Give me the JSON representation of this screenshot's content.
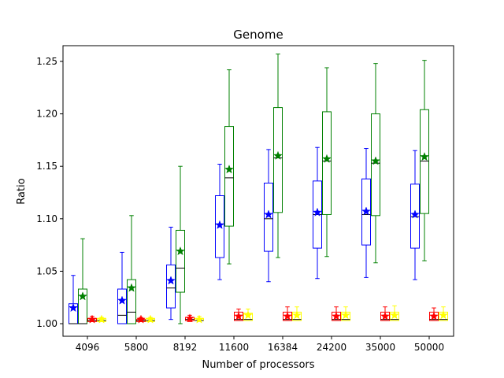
{
  "chart_data": {
    "type": "box",
    "title": "Genome",
    "xlabel": "Number of processors",
    "ylabel": "Ratio",
    "categories": [
      "4096",
      "5800",
      "8192",
      "11600",
      "16384",
      "24200",
      "35000",
      "50000"
    ],
    "ylim": [
      0.988,
      1.265
    ],
    "yticks": [
      1.0,
      1.05,
      1.1,
      1.15,
      1.2,
      1.25
    ],
    "ytick_labels": [
      "1.00",
      "1.05",
      "1.10",
      "1.15",
      "1.20",
      "1.25"
    ],
    "grid": false,
    "legend": "none",
    "series": [
      {
        "color": "#0000ff",
        "boxes": [
          {
            "min": 1.0,
            "q1": 1.0,
            "median": 1.0,
            "q3": 1.019,
            "max": 1.046,
            "mean": 1.015
          },
          {
            "min": 1.0,
            "q1": 1.0,
            "median": 1.008,
            "q3": 1.033,
            "max": 1.068,
            "mean": 1.022
          },
          {
            "min": 1.004,
            "q1": 1.015,
            "median": 1.034,
            "q3": 1.056,
            "max": 1.092,
            "mean": 1.041
          },
          {
            "min": 1.042,
            "q1": 1.063,
            "median": 1.095,
            "q3": 1.122,
            "max": 1.152,
            "mean": 1.094
          },
          {
            "min": 1.04,
            "q1": 1.069,
            "median": 1.1,
            "q3": 1.134,
            "max": 1.166,
            "mean": 1.104
          },
          {
            "min": 1.043,
            "q1": 1.072,
            "median": 1.104,
            "q3": 1.136,
            "max": 1.168,
            "mean": 1.106
          },
          {
            "min": 1.044,
            "q1": 1.075,
            "median": 1.104,
            "q3": 1.138,
            "max": 1.167,
            "mean": 1.107
          },
          {
            "min": 1.042,
            "q1": 1.072,
            "median": 1.102,
            "q3": 1.133,
            "max": 1.165,
            "mean": 1.104
          }
        ]
      },
      {
        "color": "#008000",
        "boxes": [
          {
            "min": 1.0,
            "q1": 1.0,
            "median": 1.0,
            "q3": 1.033,
            "max": 1.081,
            "mean": 1.026
          },
          {
            "min": 1.0,
            "q1": 1.0,
            "median": 1.011,
            "q3": 1.042,
            "max": 1.103,
            "mean": 1.034
          },
          {
            "min": 1.0,
            "q1": 1.03,
            "median": 1.053,
            "q3": 1.089,
            "max": 1.15,
            "mean": 1.069
          },
          {
            "min": 1.057,
            "q1": 1.093,
            "median": 1.139,
            "q3": 1.188,
            "max": 1.242,
            "mean": 1.147
          },
          {
            "min": 1.063,
            "q1": 1.106,
            "median": 1.158,
            "q3": 1.206,
            "max": 1.257,
            "mean": 1.16
          },
          {
            "min": 1.064,
            "q1": 1.104,
            "median": 1.155,
            "q3": 1.202,
            "max": 1.244,
            "mean": 1.157
          },
          {
            "min": 1.058,
            "q1": 1.103,
            "median": 1.153,
            "q3": 1.2,
            "max": 1.248,
            "mean": 1.155
          },
          {
            "min": 1.06,
            "q1": 1.105,
            "median": 1.155,
            "q3": 1.204,
            "max": 1.251,
            "mean": 1.159
          }
        ]
      },
      {
        "color": "#ff0000",
        "boxes": [
          {
            "min": 1.002,
            "q1": 1.002,
            "median": 1.003,
            "q3": 1.005,
            "max": 1.007,
            "mean": 1.004
          },
          {
            "min": 1.002,
            "q1": 1.002,
            "median": 1.003,
            "q3": 1.004,
            "max": 1.006,
            "mean": 1.004
          },
          {
            "min": 1.002,
            "q1": 1.003,
            "median": 1.004,
            "q3": 1.006,
            "max": 1.008,
            "mean": 1.005
          },
          {
            "min": 1.003,
            "q1": 1.003,
            "median": 1.004,
            "q3": 1.011,
            "max": 1.014,
            "mean": 1.007
          },
          {
            "min": 1.003,
            "q1": 1.003,
            "median": 1.004,
            "q3": 1.011,
            "max": 1.016,
            "mean": 1.007
          },
          {
            "min": 1.003,
            "q1": 1.003,
            "median": 1.004,
            "q3": 1.011,
            "max": 1.016,
            "mean": 1.007
          },
          {
            "min": 1.003,
            "q1": 1.003,
            "median": 1.004,
            "q3": 1.011,
            "max": 1.016,
            "mean": 1.007
          },
          {
            "min": 1.003,
            "q1": 1.003,
            "median": 1.004,
            "q3": 1.011,
            "max": 1.015,
            "mean": 1.007
          }
        ]
      },
      {
        "color": "#ffff00",
        "boxes": [
          {
            "min": 1.002,
            "q1": 1.002,
            "median": 1.003,
            "q3": 1.005,
            "max": 1.006,
            "mean": 1.004
          },
          {
            "min": 1.002,
            "q1": 1.002,
            "median": 1.003,
            "q3": 1.005,
            "max": 1.006,
            "mean": 1.004
          },
          {
            "min": 1.002,
            "q1": 1.003,
            "median": 1.003,
            "q3": 1.005,
            "max": 1.007,
            "mean": 1.004
          },
          {
            "min": 1.003,
            "q1": 1.003,
            "median": 1.004,
            "q3": 1.01,
            "max": 1.014,
            "mean": 1.008
          },
          {
            "min": 1.003,
            "q1": 1.003,
            "median": 1.004,
            "q3": 1.011,
            "max": 1.016,
            "mean": 1.008
          },
          {
            "min": 1.003,
            "q1": 1.003,
            "median": 1.004,
            "q3": 1.011,
            "max": 1.016,
            "mean": 1.008
          },
          {
            "min": 1.003,
            "q1": 1.003,
            "median": 1.004,
            "q3": 1.011,
            "max": 1.017,
            "mean": 1.008
          },
          {
            "min": 1.003,
            "q1": 1.003,
            "median": 1.004,
            "q3": 1.011,
            "max": 1.016,
            "mean": 1.008
          }
        ]
      }
    ]
  }
}
